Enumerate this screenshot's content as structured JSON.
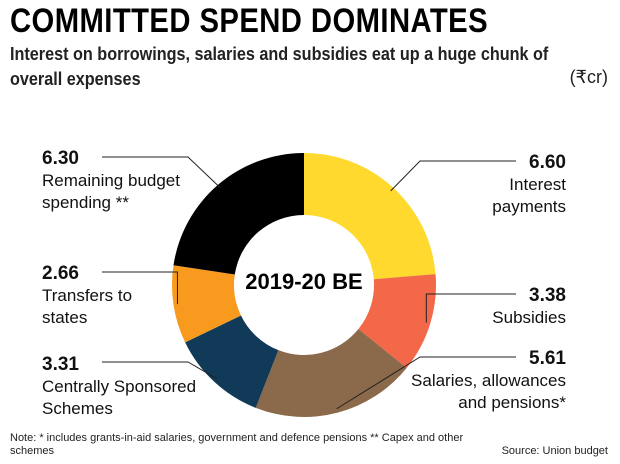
{
  "title": "COMMITTED SPEND DOMINATES",
  "subtitle": "Interest on borrowings, salaries and subsidies eat up a huge chunk of overall expenses",
  "unit": "(₹cr)",
  "center_label": "2019-20 BE",
  "footnote": "Note: * includes grants-in-aid salaries, government and defence pensions ** Capex and other schemes",
  "source": "Source: Union budget",
  "chart_data": {
    "type": "pie",
    "title": "COMMITTED SPEND DOMINATES",
    "center_label": "2019-20 BE",
    "unit": "₹cr",
    "slices": [
      {
        "value_label": "6.60",
        "label": "Interest payments",
        "value": 6.6,
        "color": "#FFD92E"
      },
      {
        "value_label": "3.38",
        "label": "Subsidies",
        "value": 3.38,
        "color": "#F26849"
      },
      {
        "value_label": "5.61",
        "label": "Salaries, allowances and pensions*",
        "value": 5.61,
        "color": "#8B6A4B"
      },
      {
        "value_label": "3.31",
        "label": "Centrally Sponsored Schemes",
        "value": 3.31,
        "color": "#103A57"
      },
      {
        "value_label": "2.66",
        "label": "Transfers to states",
        "value": 2.66,
        "color": "#F79A1E"
      },
      {
        "value_label": "6.30",
        "label": "Remaining budget spending **",
        "value": 6.3,
        "color": "#000000"
      }
    ]
  }
}
